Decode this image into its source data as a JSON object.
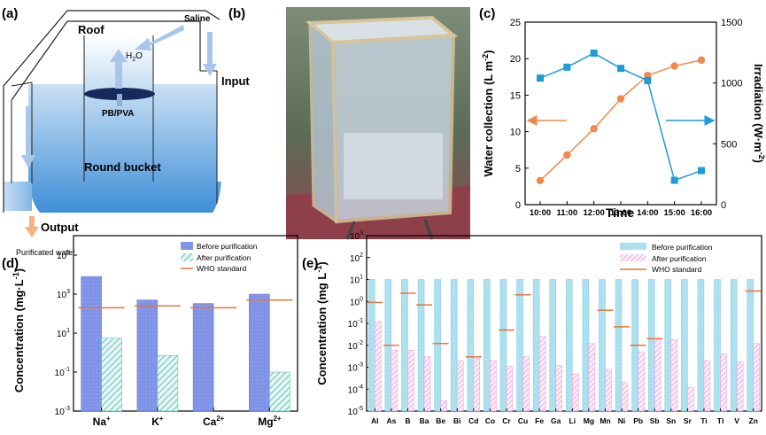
{
  "panel_labels": {
    "a": "(a)",
    "b": "(b)",
    "c": "(c)",
    "d": "(d)",
    "e": "(e)"
  },
  "schematic": {
    "roof": "Roof",
    "saline": "Saline",
    "input": "Input",
    "vapor": "H",
    "vapor_sub": "2",
    "vapor_tail": "O",
    "membrane": "PB/PVA",
    "bucket": "Round bucket",
    "output": "Output",
    "product": "Purificated water"
  },
  "photo": {
    "description_visible": false
  },
  "colors": {
    "blue_series": "#1f9bd7",
    "orange_series": "#f08a4b",
    "before_bar": "#7e92e6",
    "after_bar": "#5fc2b8",
    "who_line": "#e8743b",
    "before_e": "#8fd4e6",
    "after_e": "#e79bd6",
    "axis_left_arrow": "#f08a4b",
    "axis_right_arrow": "#1f9bd7"
  },
  "chart_data": [
    {
      "id": "c",
      "type": "line",
      "xlabel": "Time",
      "ylabel_left": "Water collection (L m",
      "ylabel_left_sup": "-2",
      "ylabel_left_tail": ")",
      "ylabel_right": "Irradiation (W·m",
      "ylabel_right_sup": "-2",
      "ylabel_right_tail": ")",
      "categories": [
        "10:00",
        "11:00",
        "12:00",
        "13:00",
        "14:00",
        "15:00",
        "16:00"
      ],
      "left_ylim": [
        0,
        25
      ],
      "left_ticks": [
        0,
        5,
        10,
        15,
        20,
        25
      ],
      "right_ylim": [
        0,
        1500
      ],
      "right_ticks": [
        0,
        500,
        1000,
        1500
      ],
      "series": [
        {
          "axis": "left",
          "marker": "circle",
          "values": [
            3.3,
            6.8,
            10.4,
            14.5,
            17.7,
            19.0,
            19.8
          ]
        },
        {
          "axis": "right",
          "marker": "square",
          "values": [
            1040,
            1130,
            1245,
            1120,
            1020,
            200,
            280
          ]
        }
      ]
    },
    {
      "id": "d",
      "type": "bar",
      "scale": "log",
      "ylabel": "Concentration (mg·L",
      "ylabel_sup": "-1",
      "ylabel_tail": ")",
      "ylim": [
        0.001,
        1000000
      ],
      "yticks": [
        {
          "base": "10",
          "exp": "-3",
          "value": 0.001
        },
        {
          "base": "10",
          "exp": "-1",
          "value": 0.1
        },
        {
          "base": "10",
          "exp": "1",
          "value": 10
        },
        {
          "base": "10",
          "exp": "3",
          "value": 1000
        },
        {
          "base": "10",
          "exp": "5",
          "value": 100000
        }
      ],
      "legend": [
        "Before purification",
        "After purification",
        "WHO standard"
      ],
      "categories": [
        {
          "ion": "Na",
          "charge": "+"
        },
        {
          "ion": "K",
          "charge": "+"
        },
        {
          "ion": "Ca",
          "charge": "2+"
        },
        {
          "ion": "Mg",
          "charge": "2+"
        }
      ],
      "before": [
        8000,
        500,
        330,
        1000
      ],
      "after": [
        5.5,
        0.7,
        0.0008,
        0.1
      ],
      "who": [
        200,
        250,
        200,
        500
      ]
    },
    {
      "id": "e",
      "type": "bar",
      "scale": "log",
      "ylabel": "Concentration (mg L",
      "ylabel_sup": "-1",
      "ylabel_tail": ")",
      "ylim": [
        1e-05,
        1000
      ],
      "yticks": [
        {
          "base": "10",
          "exp": "-5",
          "value": 1e-05
        },
        {
          "base": "10",
          "exp": "-4",
          "value": 0.0001
        },
        {
          "base": "10",
          "exp": "-3",
          "value": 0.001
        },
        {
          "base": "10",
          "exp": "-2",
          "value": 0.01
        },
        {
          "base": "10",
          "exp": "-1",
          "value": 0.1
        },
        {
          "base": "10",
          "exp": "0",
          "value": 1
        },
        {
          "base": "10",
          "exp": "1",
          "value": 10
        },
        {
          "base": "10",
          "exp": "2",
          "value": 100
        },
        {
          "base": "10",
          "exp": "3",
          "value": 1000
        }
      ],
      "legend": [
        "Before purification",
        "After purification",
        "WHO standard"
      ],
      "categories": [
        "Al",
        "As",
        "B",
        "Ba",
        "Be",
        "Bi",
        "Cd",
        "Co",
        "Cr",
        "Cu",
        "Fe",
        "Ga",
        "Li",
        "Mg",
        "Mn",
        "Ni",
        "Pb",
        "Sb",
        "Sn",
        "Sr",
        "Ti",
        "Tl",
        "V",
        "Zn"
      ],
      "before": [
        10,
        10,
        10,
        10,
        10,
        10,
        10,
        10,
        10,
        10,
        10,
        10,
        10,
        10,
        10,
        10,
        10,
        10,
        10,
        10,
        10,
        10,
        10,
        10
      ],
      "after": [
        0.12,
        0.006,
        0.006,
        0.003,
        3e-05,
        0.002,
        0.0025,
        0.002,
        0.0011,
        0.003,
        0.025,
        0.0012,
        0.0005,
        0.012,
        0.0008,
        0.0002,
        0.005,
        0.02,
        0.018,
        0.00012,
        0.002,
        0.004,
        0.0018,
        0.012
      ],
      "who": [
        0.9,
        0.01,
        2.4,
        0.7,
        0.012,
        null,
        0.003,
        null,
        0.05,
        2,
        null,
        null,
        null,
        null,
        0.4,
        0.07,
        0.01,
        0.02,
        null,
        null,
        null,
        null,
        null,
        3
      ]
    }
  ]
}
